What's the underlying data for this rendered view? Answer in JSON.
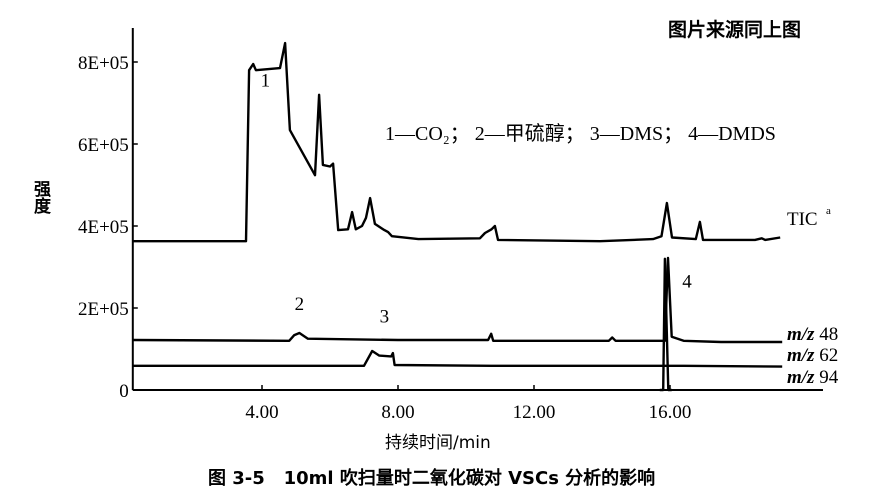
{
  "source_note": "图片来源同上图",
  "caption": "图 3-5   10ml 吹扫量时二氧化碳对 VSCs 分析的影响",
  "chart_data": {
    "type": "line",
    "title": "",
    "xlabel": "持续时间/min",
    "ylabel": "强度",
    "xlim": [
      0.2,
      20.5
    ],
    "ylim": [
      0,
      900000
    ],
    "xticks": [
      4,
      8,
      12,
      16
    ],
    "xtick_labels": [
      "4.00",
      "8.00",
      "12.00",
      "16.00"
    ],
    "yticks": [
      0,
      200000,
      400000,
      600000,
      800000
    ],
    "ytick_labels": [
      "0",
      "2E+05",
      "4E+05",
      "6E+05",
      "8E+05"
    ],
    "grid": false,
    "legend_text": "1—CO₂； 2—甲硫醇； 3—DMS； 4—DMDS",
    "peak_labels": [
      {
        "text": "1",
        "x": 4.1,
        "y": 740000
      },
      {
        "text": "2",
        "x": 5.1,
        "y": 195000
      },
      {
        "text": "3",
        "x": 7.6,
        "y": 165000
      },
      {
        "text": "4",
        "x": 16.5,
        "y": 250000
      }
    ],
    "series": [
      {
        "name": "TIC",
        "sup": "a",
        "points": [
          [
            0.2,
            363000
          ],
          [
            3.53,
            363000
          ],
          [
            3.62,
            780000
          ],
          [
            3.74,
            795000
          ],
          [
            3.82,
            780000
          ],
          [
            4.53,
            785000
          ],
          [
            4.68,
            846000
          ],
          [
            4.82,
            634000
          ],
          [
            5.56,
            524000
          ],
          [
            5.68,
            720000
          ],
          [
            5.79,
            549000
          ],
          [
            6.0,
            545000
          ],
          [
            6.09,
            552000
          ],
          [
            6.24,
            390000
          ],
          [
            6.53,
            392000
          ],
          [
            6.65,
            434000
          ],
          [
            6.76,
            392000
          ],
          [
            6.94,
            400000
          ],
          [
            7.06,
            420000
          ],
          [
            7.18,
            468000
          ],
          [
            7.32,
            405000
          ],
          [
            7.6,
            390000
          ],
          [
            7.71,
            385000
          ],
          [
            7.82,
            375000
          ],
          [
            8.6,
            368000
          ],
          [
            10.41,
            370000
          ],
          [
            10.56,
            383000
          ],
          [
            10.75,
            392000
          ],
          [
            10.85,
            400000
          ],
          [
            10.94,
            366000
          ],
          [
            13.94,
            363000
          ],
          [
            15.5,
            368000
          ],
          [
            15.75,
            375000
          ],
          [
            15.91,
            456000
          ],
          [
            16.06,
            372000
          ],
          [
            16.76,
            368000
          ],
          [
            16.88,
            410000
          ],
          [
            16.97,
            366000
          ],
          [
            18.5,
            366000
          ],
          [
            18.7,
            370000
          ],
          [
            18.8,
            366000
          ],
          [
            19.24,
            372000
          ]
        ]
      },
      {
        "name": "m/z 48",
        "points": [
          [
            0.2,
            122000
          ],
          [
            4.8,
            120000
          ],
          [
            4.95,
            134000
          ],
          [
            5.1,
            139000
          ],
          [
            5.35,
            125000
          ],
          [
            8,
            122000
          ],
          [
            10.65,
            122000
          ],
          [
            10.74,
            137000
          ],
          [
            10.8,
            120000
          ],
          [
            14.2,
            120000
          ],
          [
            14.3,
            128000
          ],
          [
            14.4,
            120000
          ],
          [
            15.85,
            120000
          ],
          [
            15.94,
            322000
          ],
          [
            16.05,
            130000
          ],
          [
            16.4,
            120000
          ],
          [
            17.5,
            117000
          ],
          [
            19.3,
            117000
          ]
        ]
      },
      {
        "name": "m/z 62",
        "points": [
          [
            0.2,
            59000
          ],
          [
            7.0,
            59000
          ],
          [
            7.24,
            95000
          ],
          [
            7.45,
            84000
          ],
          [
            7.8,
            82000
          ],
          [
            7.85,
            90000
          ],
          [
            7.9,
            61000
          ],
          [
            10.74,
            59000
          ],
          [
            15.75,
            59000
          ],
          [
            16.4,
            59000
          ],
          [
            19.3,
            57000
          ]
        ]
      },
      {
        "name": "m/z 94",
        "points": [
          [
            15.7,
            0
          ],
          [
            15.8,
            0
          ],
          [
            15.85,
            320000
          ],
          [
            15.95,
            0
          ],
          [
            16.05,
            0
          ]
        ]
      }
    ],
    "series_labels": [
      "m/z 48",
      "m/z 62",
      "m/z 94"
    ]
  }
}
